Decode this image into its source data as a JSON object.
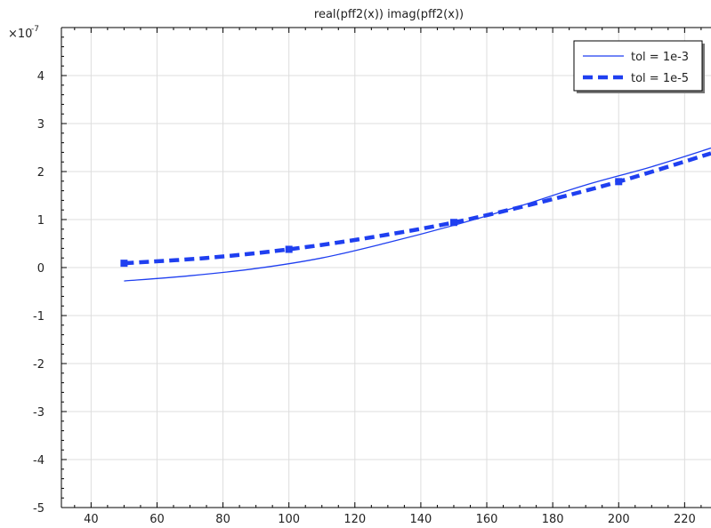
{
  "chart_data": {
    "type": "line",
    "title": "real(pff2(x))  imag(pff2(x))",
    "xlabel": "",
    "ylabel": "",
    "y_multiplier_base": "×10",
    "y_multiplier_exp": "-7",
    "xlim": [
      31,
      228
    ],
    "ylim": [
      -5,
      5
    ],
    "xticks": [
      40,
      60,
      80,
      100,
      120,
      140,
      160,
      180,
      200,
      220
    ],
    "yticks": [
      -5,
      -4,
      -3,
      -2,
      -1,
      0,
      1,
      2,
      3,
      4
    ],
    "grid": true,
    "legend_position": "top-right",
    "series": [
      {
        "name": "tol = 1e-3",
        "color": "#1f3ff0",
        "style": "solid",
        "x": [
          50,
          70,
          90,
          110,
          130,
          150,
          170,
          190,
          210,
          228
        ],
        "y": [
          -0.28,
          -0.17,
          -0.02,
          0.2,
          0.52,
          0.88,
          1.28,
          1.72,
          2.1,
          2.49
        ]
      },
      {
        "name": "tol = 1e-5",
        "color": "#1f3ff0",
        "style": "dashed",
        "markers_at": [
          50,
          100,
          150,
          200
        ],
        "x": [
          50,
          75,
          100,
          125,
          150,
          175,
          200,
          228
        ],
        "y": [
          0.09,
          0.2,
          0.38,
          0.63,
          0.94,
          1.34,
          1.79,
          2.38
        ]
      }
    ]
  }
}
